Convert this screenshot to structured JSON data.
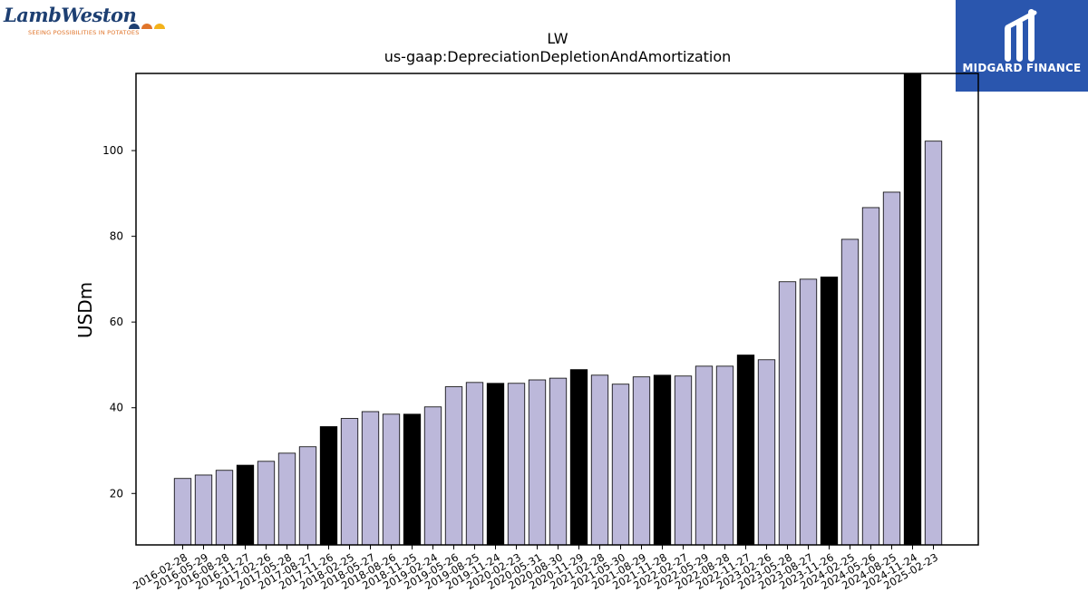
{
  "logos": {
    "left_wordmark": "LambWeston",
    "left_tagline": "SEEING POSSIBILITIES IN POTATOES",
    "right_brand": "MIDGARD FINANCE"
  },
  "colors": {
    "bar_regular": "#bcb8da",
    "bar_highlight": "#000000",
    "bar_edge": "#000000",
    "brand_blue": "#2a56ae",
    "lw_blue": "#1d3f72",
    "lw_orange": "#e0742a"
  },
  "chart_data": {
    "type": "bar",
    "title": "LW",
    "subtitle": "us-gaap:DepreciationDepletionAndAmortization",
    "xlabel": "",
    "ylabel": "USDm",
    "ylim": [
      8,
      118
    ],
    "yticks": [
      20,
      40,
      60,
      80,
      100
    ],
    "grid": false,
    "categories": [
      "2016-02-28",
      "2016-05-29",
      "2016-08-28",
      "2016-11-27",
      "2017-02-26",
      "2017-05-28",
      "2017-08-27",
      "2017-11-26",
      "2018-02-25",
      "2018-05-27",
      "2018-08-26",
      "2018-11-25",
      "2019-02-24",
      "2019-05-26",
      "2019-08-25",
      "2019-11-24",
      "2020-02-23",
      "2020-05-31",
      "2020-08-30",
      "2020-11-29",
      "2021-02-28",
      "2021-05-30",
      "2021-08-29",
      "2021-11-28",
      "2022-02-27",
      "2022-05-29",
      "2022-08-28",
      "2022-11-27",
      "2023-02-26",
      "2023-05-28",
      "2023-08-27",
      "2023-11-26",
      "2024-02-25",
      "2024-05-26",
      "2024-08-25",
      "2024-11-24",
      "2025-02-23"
    ],
    "values": [
      23.5,
      24.3,
      25.4,
      26.6,
      27.5,
      29.4,
      30.9,
      35.6,
      37.5,
      39.1,
      38.5,
      38.5,
      40.2,
      44.9,
      45.9,
      45.7,
      45.7,
      46.5,
      46.9,
      48.9,
      47.6,
      45.5,
      47.2,
      47.6,
      47.4,
      49.7,
      49.7,
      52.3,
      51.2,
      69.4,
      70.0,
      70.5,
      79.3,
      86.7,
      90.3,
      118.0,
      102.2
    ],
    "highlight": [
      false,
      false,
      false,
      true,
      false,
      false,
      false,
      true,
      false,
      false,
      false,
      true,
      false,
      false,
      false,
      true,
      false,
      false,
      false,
      true,
      false,
      false,
      false,
      true,
      false,
      false,
      false,
      true,
      false,
      false,
      false,
      true,
      false,
      false,
      false,
      true,
      false
    ]
  }
}
